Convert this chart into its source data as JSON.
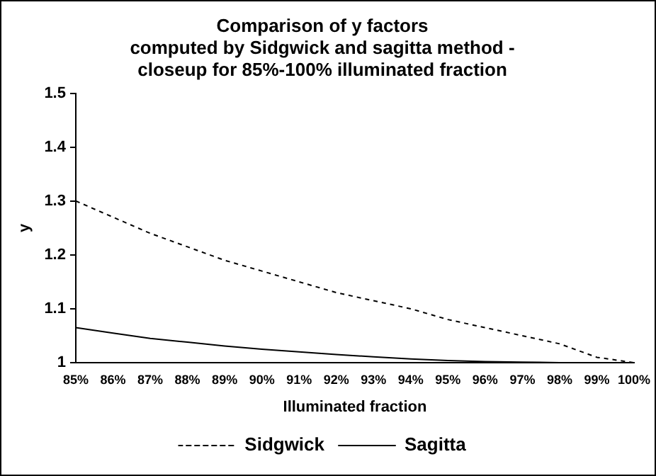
{
  "chart_data": {
    "type": "line",
    "title": "Comparison of y factors\ncomputed by Sidgwick and sagitta method -\ncloseup for 85%-100% illuminated fraction",
    "xlabel": "Illuminated fraction",
    "ylabel": "y",
    "categories": [
      "85%",
      "86%",
      "87%",
      "88%",
      "89%",
      "90%",
      "91%",
      "92%",
      "93%",
      "94%",
      "95%",
      "96%",
      "97%",
      "98%",
      "99%",
      "100%"
    ],
    "series": [
      {
        "name": "Sidgwick",
        "color": "#000000",
        "line_style": "dashed",
        "values": [
          1.3,
          1.27,
          1.24,
          1.215,
          1.19,
          1.17,
          1.15,
          1.13,
          1.115,
          1.1,
          1.08,
          1.065,
          1.05,
          1.035,
          1.01,
          1.0
        ]
      },
      {
        "name": "Sagitta",
        "color": "#000000",
        "line_style": "solid",
        "values": [
          1.065,
          1.055,
          1.045,
          1.038,
          1.031,
          1.025,
          1.02,
          1.015,
          1.011,
          1.007,
          1.004,
          1.002,
          1.001,
          1.0,
          1.0,
          1.0
        ]
      }
    ],
    "ylim": [
      1,
      1.5
    ],
    "yticks": [
      1,
      1.1,
      1.2,
      1.3,
      1.4,
      1.5
    ],
    "grid": false,
    "legend": "bottom",
    "marker": "none"
  }
}
